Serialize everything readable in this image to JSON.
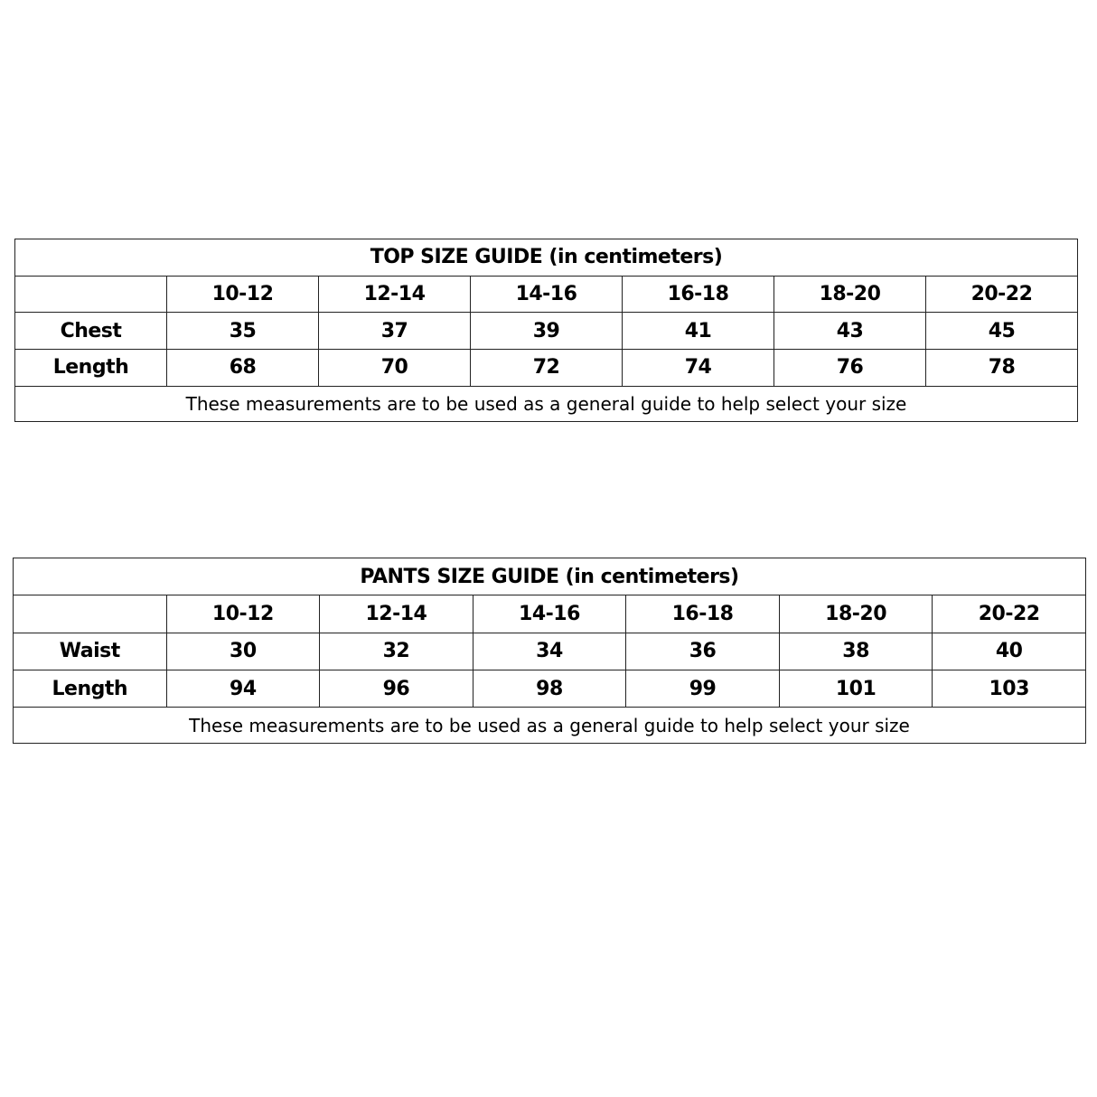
{
  "top_guide": {
    "title": "TOP SIZE GUIDE (in centimeters)",
    "sizes": [
      "10-12",
      "12-14",
      "14-16",
      "16-18",
      "18-20",
      "20-22"
    ],
    "rows": [
      {
        "label": "Chest",
        "values": [
          "35",
          "37",
          "39",
          "41",
          "43",
          "45"
        ]
      },
      {
        "label": "Length",
        "values": [
          "68",
          "70",
          "72",
          "74",
          "76",
          "78"
        ]
      }
    ],
    "note": "These measurements are to be used as a general guide to help select your size"
  },
  "pants_guide": {
    "title": "PANTS SIZE GUIDE (in centimeters)",
    "sizes": [
      "10-12",
      "12-14",
      "14-16",
      "16-18",
      "18-20",
      "20-22"
    ],
    "rows": [
      {
        "label": "Waist",
        "values": [
          "30",
          "32",
          "34",
          "36",
          "38",
          "40"
        ]
      },
      {
        "label": "Length",
        "values": [
          "94",
          "96",
          "98",
          "99",
          "101",
          "103"
        ]
      }
    ],
    "note": "These measurements are to be used as a general guide to help select your size"
  }
}
